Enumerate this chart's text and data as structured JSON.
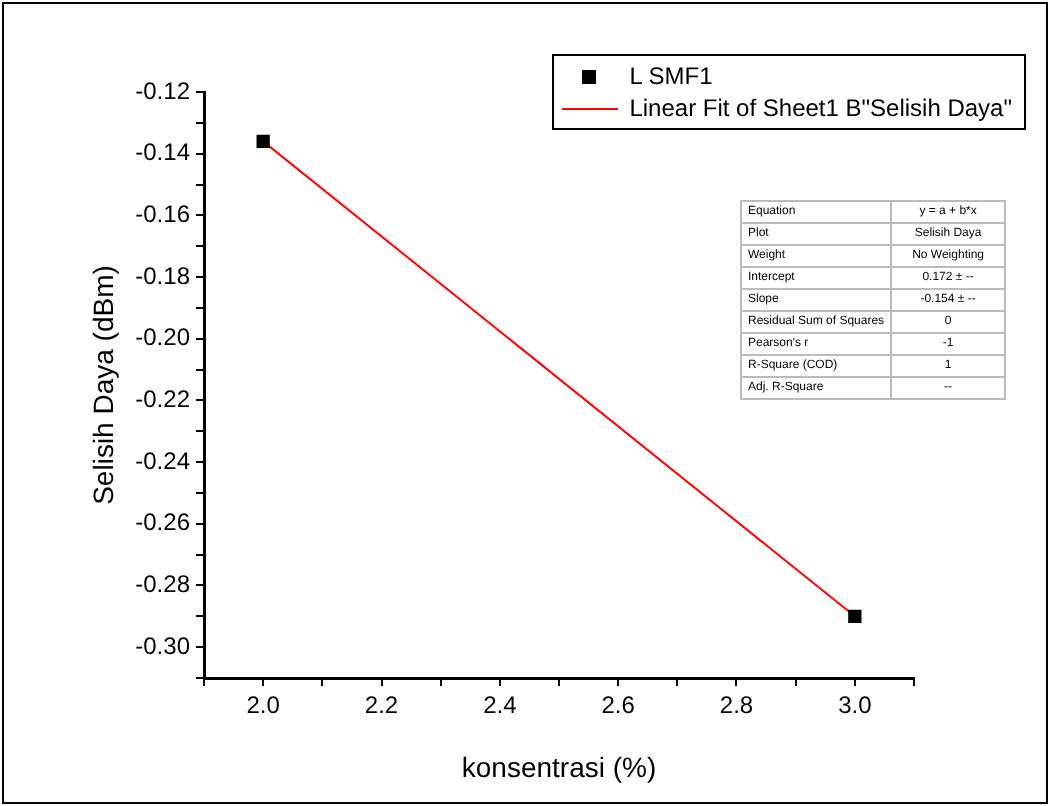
{
  "chart_data": {
    "type": "scatter",
    "xlabel": "konsentrasi (%)",
    "ylabel": "Selisih Daya (dBm)",
    "xlim": [
      1.9,
      3.1
    ],
    "xticks": [
      {
        "value": 1.9,
        "label": null
      },
      {
        "value": 2,
        "label": "2.0"
      },
      {
        "value": 2.1,
        "label": null
      },
      2.2,
      {
        "value": 2.3,
        "label": null
      },
      2.4,
      {
        "value": 2.5,
        "label": null
      },
      2.6,
      {
        "value": 2.7,
        "label": null
      },
      2.8,
      {
        "value": 2.9,
        "label": null
      },
      {
        "value": 3,
        "label": "3.0"
      },
      {
        "value": 3.1,
        "label": null
      }
    ],
    "ylim": [
      -0.31,
      -0.12
    ],
    "yticks": [
      {
        "value": -0.31,
        "label": null
      },
      {
        "value": -0.3,
        "label": "-0.30"
      },
      {
        "value": -0.29,
        "label": null
      },
      -0.28,
      {
        "value": -0.27,
        "label": null
      },
      -0.26,
      {
        "value": -0.25,
        "label": null
      },
      -0.24,
      {
        "value": -0.23,
        "label": null
      },
      -0.22,
      {
        "value": -0.21,
        "label": null
      },
      {
        "value": -0.2,
        "label": "-0.20"
      },
      {
        "value": -0.19,
        "label": null
      },
      -0.18,
      {
        "value": -0.17,
        "label": null
      },
      -0.16,
      {
        "value": -0.15,
        "label": null
      },
      -0.14,
      {
        "value": -0.13,
        "label": null
      },
      -0.12
    ],
    "grid": false,
    "legend": "top right",
    "x": [
      2,
      3
    ],
    "series": [
      {
        "name": "L SMF1",
        "marker": "square",
        "color": "#000000",
        "values": [
          -0.136,
          -0.29
        ]
      },
      {
        "name": "Linear Fit of Sheet1 B\"Selisih Daya\"",
        "type": "line",
        "marker": "none",
        "color": "#ff0000",
        "values": [
          -0.136,
          -0.29
        ]
      }
    ],
    "annotations": [
      "Equation",
      "y = a + b*x",
      "Plot",
      "Selisih Daya",
      "Weight",
      "No Weighting",
      "Intercept",
      "0.172 ± --",
      "Slope",
      "-0.154 ± --",
      "Residual Sum of Squares",
      "0",
      "Pearson's r",
      "-1",
      "R-Square (COD)",
      "1",
      "Adj. R-Square",
      "--"
    ]
  }
}
